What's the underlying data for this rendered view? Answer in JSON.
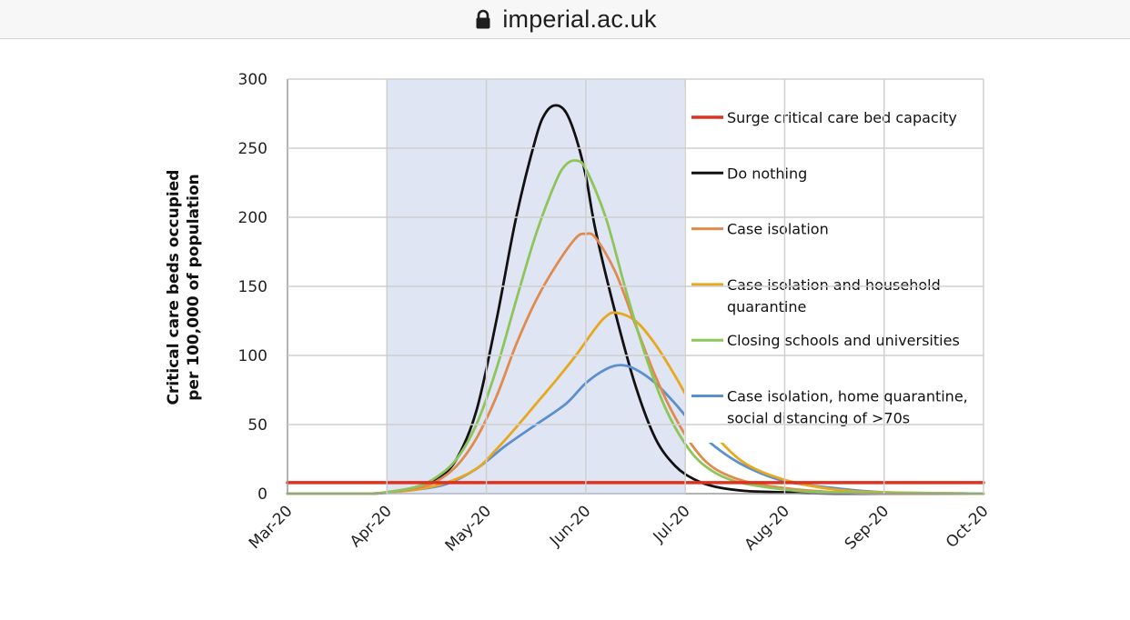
{
  "browser": {
    "domain": "imperial.ac.uk"
  },
  "chart_data": {
    "type": "line",
    "ylabel_lines": [
      "Critical care beds occupied",
      "per 100,000 of population"
    ],
    "xlabel": "",
    "ylim": [
      0,
      300
    ],
    "yticks": [
      0,
      50,
      100,
      150,
      200,
      250,
      300
    ],
    "x_range": [
      0,
      7
    ],
    "x_ticks": [
      "Mar-20",
      "Apr-20",
      "May-20",
      "Jun-20",
      "Jul-20",
      "Aug-20",
      "Sep-20",
      "Oct-20"
    ],
    "shaded_period": [
      "Apr-20",
      "Jul-20"
    ],
    "shaded_range": [
      1,
      4
    ],
    "series": [
      {
        "name": "Surge critical care bed capacity",
        "color": "#e0301e",
        "legend_lines": [
          "Surge critical care bed capacity"
        ],
        "x": [
          0,
          7
        ],
        "y": [
          8,
          8
        ]
      },
      {
        "name": "Do nothing",
        "color": "#111111",
        "legend_lines": [
          "Do nothing"
        ],
        "x": [
          0,
          0.8,
          1.0,
          1.3,
          1.5,
          1.7,
          1.9,
          2.1,
          2.3,
          2.5,
          2.6,
          2.7,
          2.8,
          2.9,
          3.0,
          3.1,
          3.3,
          3.5,
          3.7,
          3.9,
          4.1,
          4.3,
          4.6,
          5.0,
          5.5,
          7.0
        ],
        "y": [
          0,
          0,
          1,
          4,
          10,
          25,
          60,
          125,
          200,
          258,
          276,
          281,
          276,
          258,
          230,
          190,
          130,
          78,
          40,
          20,
          10,
          5,
          2,
          1,
          0,
          0
        ]
      },
      {
        "name": "Case isolation",
        "color": "#e08a4e",
        "legend_lines": [
          "Case isolation"
        ],
        "x": [
          0,
          0.8,
          1.0,
          1.3,
          1.5,
          1.7,
          1.9,
          2.1,
          2.3,
          2.5,
          2.7,
          2.9,
          3.0,
          3.1,
          3.3,
          3.5,
          3.7,
          3.9,
          4.1,
          4.3,
          4.6,
          5.0,
          5.5,
          6.0,
          7.0
        ],
        "y": [
          0,
          0,
          1,
          4,
          9,
          20,
          40,
          70,
          108,
          140,
          165,
          185,
          188,
          185,
          160,
          122,
          85,
          55,
          32,
          18,
          9,
          4,
          1,
          0,
          0
        ]
      },
      {
        "name": "Case isolation and household quarantine",
        "color": "#e6a820",
        "legend_lines": [
          "Case isolation and household",
          "quarantine"
        ],
        "x": [
          0,
          0.8,
          1.0,
          1.3,
          1.6,
          1.9,
          2.1,
          2.3,
          2.5,
          2.7,
          2.9,
          3.1,
          3.2,
          3.3,
          3.5,
          3.7,
          3.9,
          4.1,
          4.3,
          4.6,
          5.0,
          5.5,
          6.0,
          7.0
        ],
        "y": [
          0,
          0,
          1,
          3,
          8,
          18,
          32,
          48,
          65,
          82,
          100,
          120,
          128,
          131,
          125,
          108,
          85,
          60,
          42,
          22,
          10,
          3,
          1,
          0
        ]
      },
      {
        "name": "Closing schools and universities",
        "color": "#8dc55a",
        "legend_lines": [
          "Closing schools and universities"
        ],
        "x": [
          0,
          0.8,
          1.0,
          1.3,
          1.5,
          1.7,
          1.9,
          2.1,
          2.3,
          2.5,
          2.7,
          2.8,
          2.9,
          3.0,
          3.2,
          3.4,
          3.6,
          3.8,
          4.0,
          4.2,
          4.5,
          5.0,
          5.5,
          7.0
        ],
        "y": [
          0,
          0,
          1,
          5,
          12,
          25,
          50,
          90,
          140,
          188,
          226,
          238,
          241,
          235,
          200,
          148,
          100,
          62,
          36,
          20,
          9,
          3,
          1,
          0
        ]
      },
      {
        "name": "Case isolation, home quarantine, social distancing of >70s",
        "color": "#5b8fcf",
        "legend_lines": [
          "Case isolation, home quarantine,",
          "social distancing of >70s"
        ],
        "x": [
          0,
          0.8,
          1.0,
          1.3,
          1.6,
          1.9,
          2.2,
          2.5,
          2.8,
          3.0,
          3.2,
          3.35,
          3.5,
          3.7,
          3.9,
          4.1,
          4.3,
          4.6,
          5.0,
          5.5,
          6.0,
          7.0
        ],
        "y": [
          0,
          0,
          1,
          3,
          7,
          18,
          35,
          50,
          65,
          80,
          90,
          93,
          90,
          80,
          65,
          48,
          34,
          20,
          9,
          4,
          1,
          0
        ]
      }
    ]
  }
}
